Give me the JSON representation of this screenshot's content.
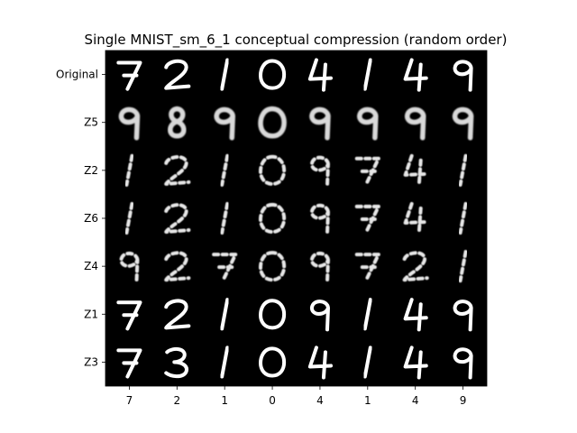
{
  "title": "Single MNIST_sm_6_1 conceptual compression (random order)",
  "row_labels": [
    "Original",
    "Z5",
    "Z2",
    "Z6",
    "Z4",
    "Z1",
    "Z3"
  ],
  "column_labels": [
    "7",
    "2",
    "1",
    "0",
    "4",
    "1",
    "4",
    "9"
  ],
  "image_grid": {
    "background_color": "#000000",
    "ink_color": "#ffffff",
    "rows": [
      {
        "label": "Original",
        "digits": [
          "7",
          "2",
          "1",
          "0",
          "4",
          "1",
          "4",
          "9"
        ],
        "quality": "sharp"
      },
      {
        "label": "Z5",
        "digits": [
          "9",
          "8",
          "9",
          "0",
          "9",
          "9",
          "9",
          "9"
        ],
        "quality": "blurry"
      },
      {
        "label": "Z2",
        "digits": [
          "1",
          "2",
          "1",
          "0",
          "9",
          "7",
          "4",
          "1"
        ],
        "quality": "fragmented"
      },
      {
        "label": "Z6",
        "digits": [
          "1",
          "2",
          "1",
          "0",
          "9",
          "7",
          "4",
          "1"
        ],
        "quality": "fragmented"
      },
      {
        "label": "Z4",
        "digits": [
          "9",
          "2",
          "7",
          "0",
          "9",
          "7",
          "2",
          "1"
        ],
        "quality": "fragmented"
      },
      {
        "label": "Z1",
        "digits": [
          "7",
          "2",
          "1",
          "0",
          "9",
          "1",
          "4",
          "9"
        ],
        "quality": "sharp"
      },
      {
        "label": "Z3",
        "digits": [
          "7",
          "3",
          "1",
          "0",
          "4",
          "1",
          "4",
          "9"
        ],
        "quality": "sharp"
      }
    ]
  }
}
